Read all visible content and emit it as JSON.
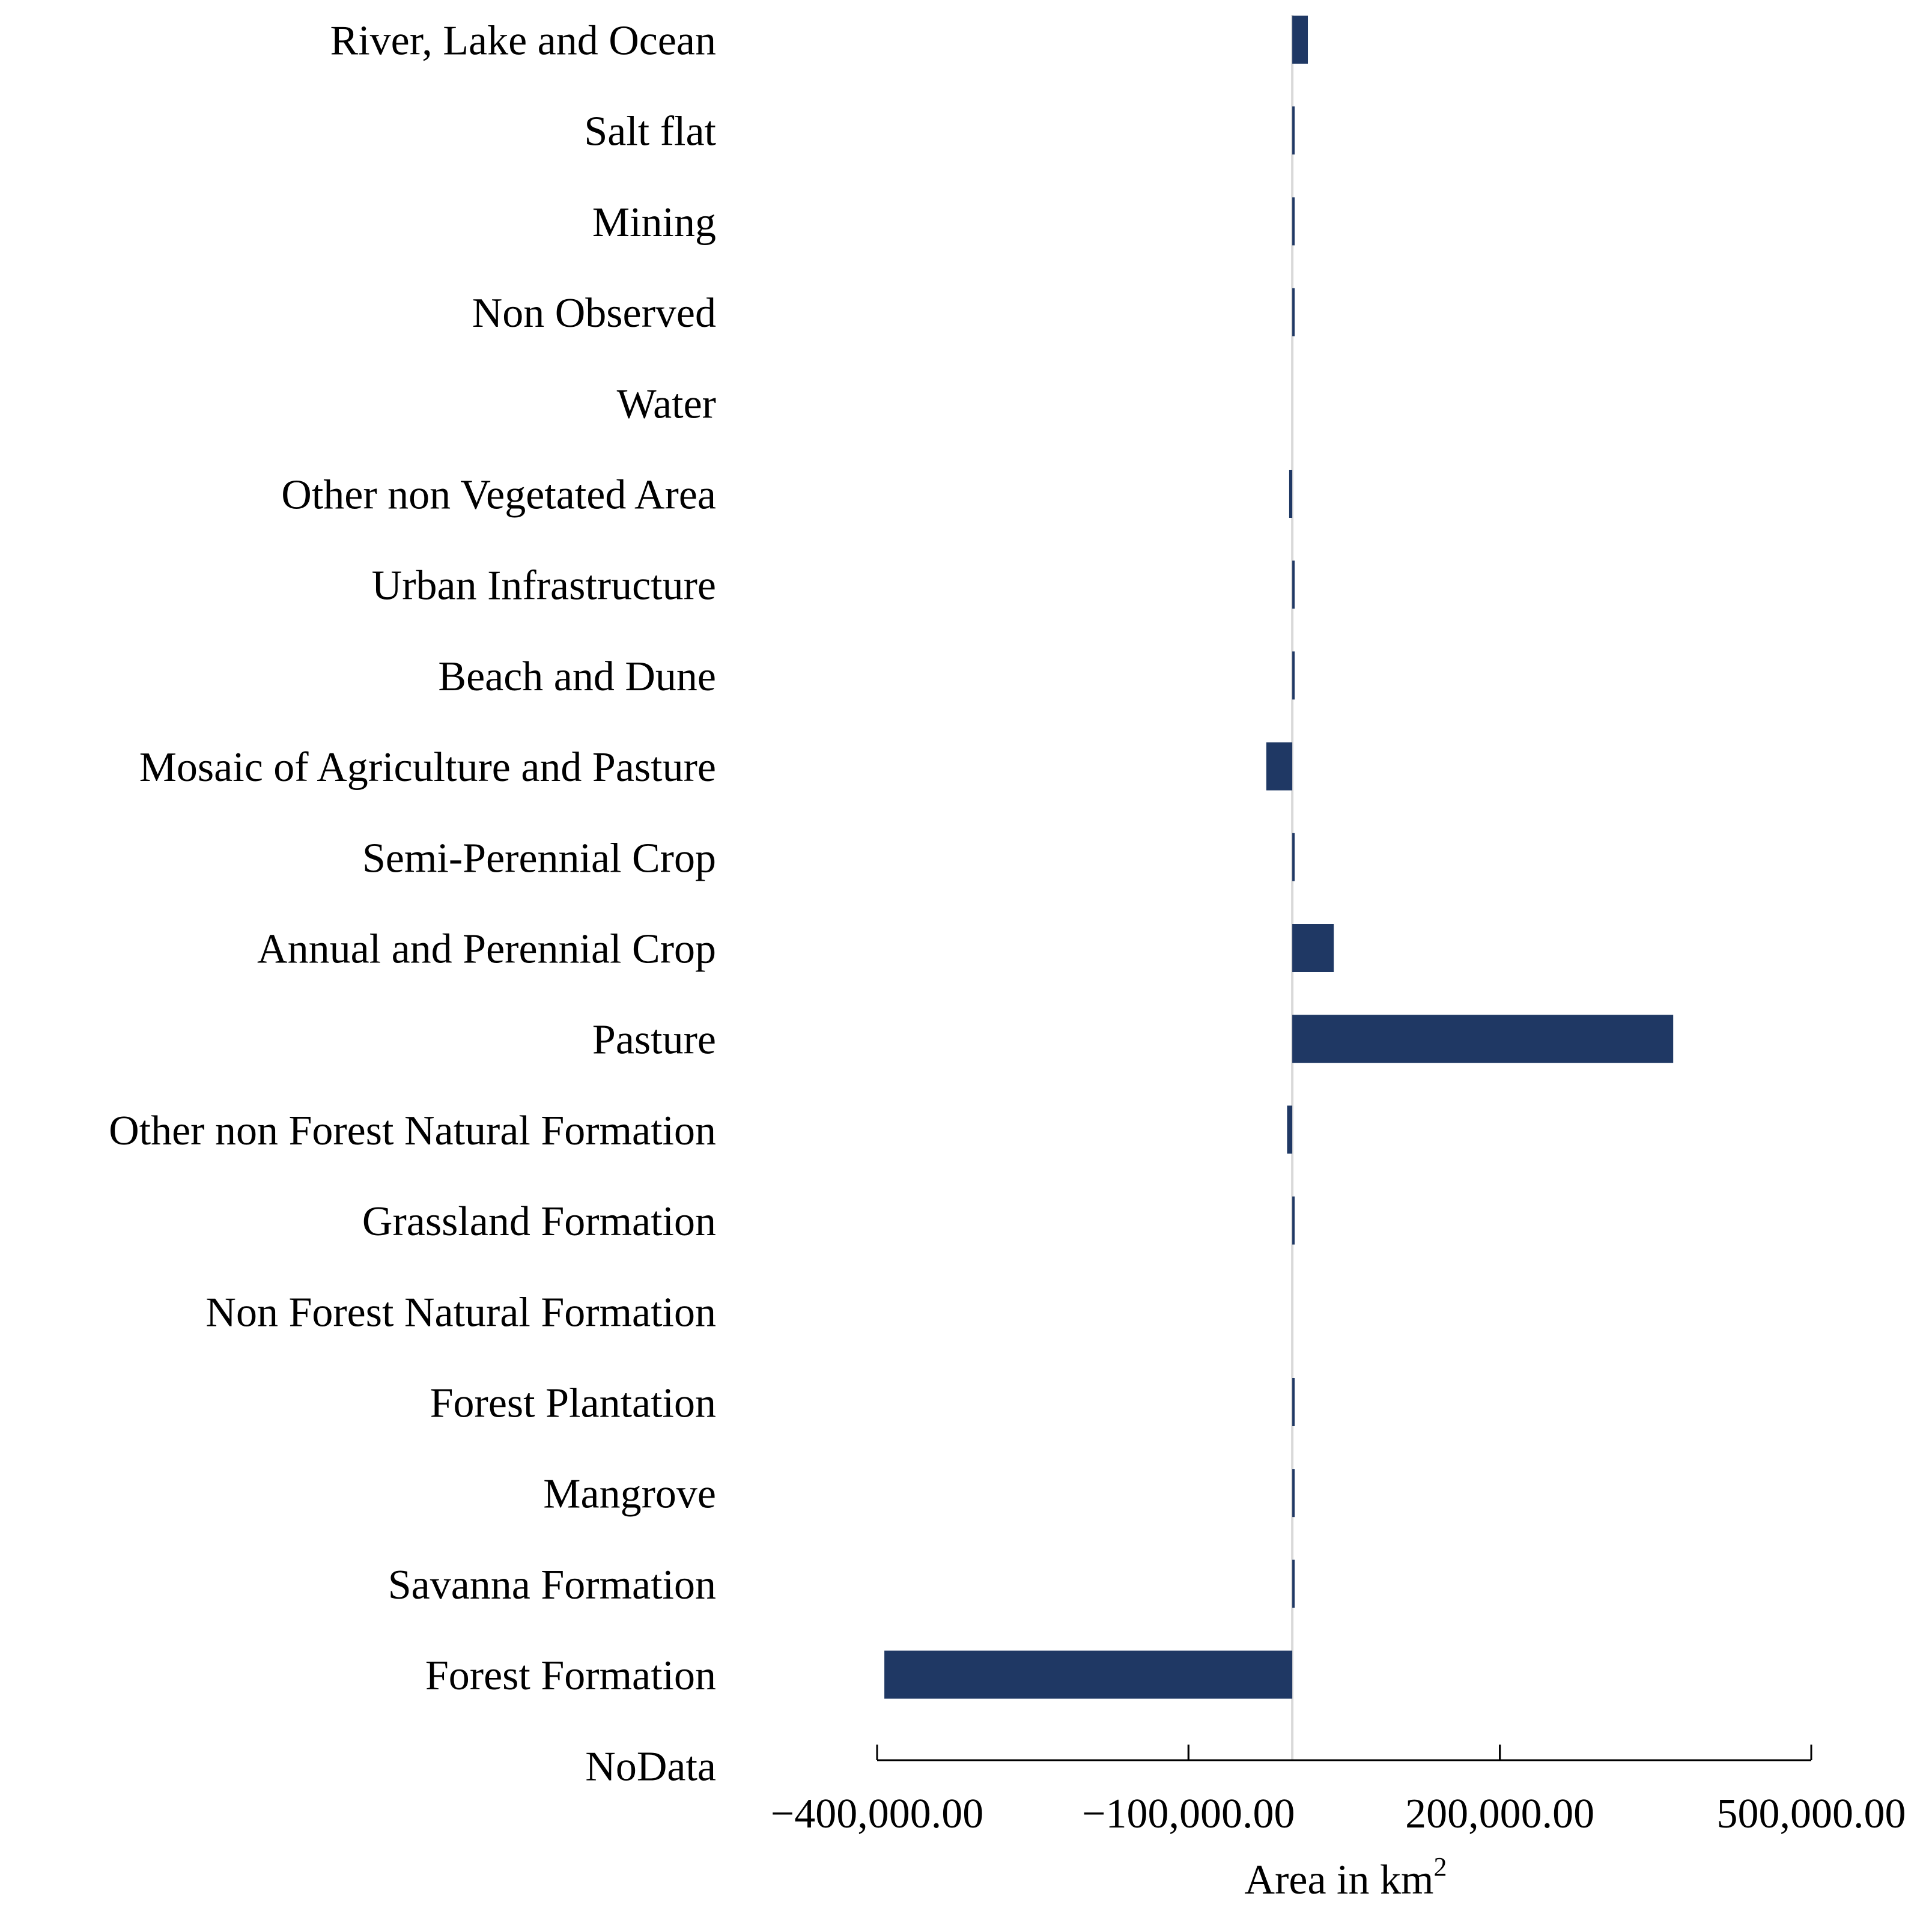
{
  "chart_data": {
    "type": "bar",
    "orientation": "horizontal",
    "title": "",
    "xlabel": "Area in km",
    "xlabel_superscript": "2",
    "ylabel": "",
    "categories": [
      "River, Lake and Ocean",
      "Salt flat",
      "Mining",
      "Non Observed",
      "Water",
      "Other non Vegetated Area",
      "Urban Infrastructure",
      "Beach and Dune",
      "Mosaic of Agriculture and Pasture",
      "Semi-Perennial Crop",
      "Annual and Perennial Crop",
      "Pasture",
      "Other non Forest Natural Formation",
      "Grassland Formation",
      "Non Forest Natural Formation",
      "Forest Plantation",
      "Mangrove",
      "Savanna Formation",
      "Forest Formation",
      "NoData"
    ],
    "values": [
      15000,
      2000,
      2000,
      2000,
      0,
      -3000,
      2000,
      2000,
      -25000,
      2000,
      40000,
      367000,
      -5000,
      2000,
      0,
      2000,
      2000,
      2000,
      -393000,
      0
    ],
    "xlim": [
      -400000,
      500000
    ],
    "ticks": [
      -400000,
      -100000,
      200000,
      500000
    ],
    "tick_labels": [
      "−400,000.00",
      "−100,000.00",
      "200,000.00",
      "500,000.00"
    ],
    "minor_ticks": [
      -100000,
      200000
    ],
    "colors": {
      "bar": "#1f3864",
      "zero_line": "#d9d9d9",
      "axis": "#000000"
    }
  }
}
